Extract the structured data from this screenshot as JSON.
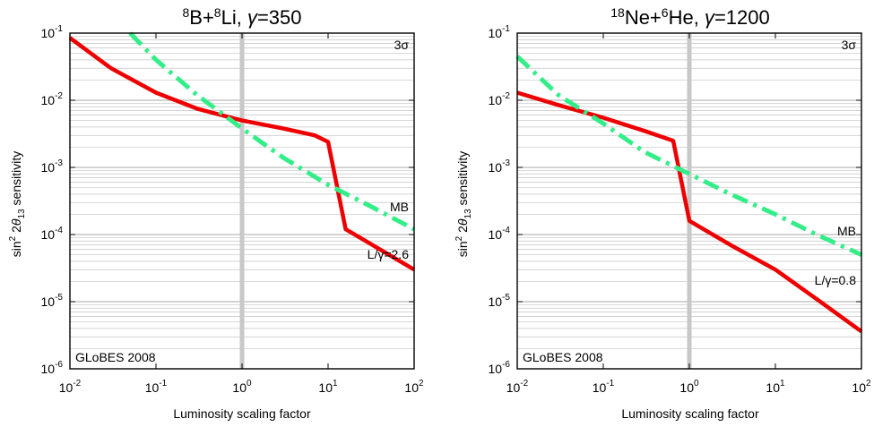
{
  "chart_data": [
    {
      "type": "line",
      "title": {
        "sup1": "8",
        "t1": "B+",
        "sup2": "8",
        "t2": "Li, ",
        "greek": "γ",
        "t3": "=350"
      },
      "xlabel": "Luminosity scaling factor",
      "ylabel": {
        "pre": "sin",
        "sup": "2",
        "mid": " 2",
        "greek": "θ",
        "sub": "13",
        "post": " sensitivity"
      },
      "xscale": "log",
      "yscale": "log",
      "xlim": [
        0.01,
        100
      ],
      "ylim": [
        1e-06,
        0.1
      ],
      "x_ticks": [
        "-2",
        "-1",
        "0",
        "1",
        "2"
      ],
      "y_ticks": [
        "-6",
        "-5",
        "-4",
        "-3",
        "-2",
        "-1"
      ],
      "tick_base": "10",
      "grid": true,
      "vline_x": 1,
      "annotations": {
        "sigma": "3σ",
        "globes": "GLoBES 2008",
        "mb": "MB",
        "lgamma": "L/γ=2.6"
      },
      "series": [
        {
          "name": "L/γ=2.6",
          "style": "solid",
          "color": "#ee0000",
          "points": [
            [
              0.01,
              0.085
            ],
            [
              0.03,
              0.03
            ],
            [
              0.1,
              0.013
            ],
            [
              0.3,
              0.0075
            ],
            [
              1,
              0.005
            ],
            [
              3,
              0.0038
            ],
            [
              7,
              0.003
            ],
            [
              10,
              0.0024
            ],
            [
              16,
              0.00012
            ],
            [
              40,
              6e-05
            ],
            [
              100,
              3e-05
            ]
          ]
        },
        {
          "name": "MB",
          "style": "dashdot",
          "color": "#33ee88",
          "points": [
            [
              0.05,
              0.1
            ],
            [
              0.1,
              0.04
            ],
            [
              0.3,
              0.012
            ],
            [
              1,
              0.0038
            ],
            [
              3,
              0.0014
            ],
            [
              10,
              0.00055
            ],
            [
              30,
              0.00027
            ],
            [
              100,
              0.00012
            ]
          ]
        }
      ]
    },
    {
      "type": "line",
      "title": {
        "sup1": "18",
        "t1": "Ne+",
        "sup2": "6",
        "t2": "He, ",
        "greek": "γ",
        "t3": "=1200"
      },
      "xlabel": "Luminosity scaling factor",
      "ylabel": {
        "pre": "sin",
        "sup": "2",
        "mid": " 2",
        "greek": "θ",
        "sub": "13",
        "post": " sensitivity"
      },
      "xscale": "log",
      "yscale": "log",
      "xlim": [
        0.01,
        100
      ],
      "ylim": [
        1e-06,
        0.1
      ],
      "x_ticks": [
        "-2",
        "-1",
        "0",
        "1",
        "2"
      ],
      "y_ticks": [
        "-6",
        "-5",
        "-4",
        "-3",
        "-2",
        "-1"
      ],
      "tick_base": "10",
      "grid": true,
      "vline_x": 1,
      "annotations": {
        "sigma": "3σ",
        "globes": "GLoBES 2008",
        "mb": "MB",
        "lgamma": "L/γ=0.8"
      },
      "series": [
        {
          "name": "L/γ=0.8",
          "style": "solid",
          "color": "#ee0000",
          "points": [
            [
              0.01,
              0.013
            ],
            [
              0.03,
              0.0085
            ],
            [
              0.1,
              0.0055
            ],
            [
              0.3,
              0.0035
            ],
            [
              0.65,
              0.0025
            ],
            [
              1,
              0.00016
            ],
            [
              3,
              7e-05
            ],
            [
              10,
              3e-05
            ],
            [
              30,
              1.1e-05
            ],
            [
              100,
              3.6e-06
            ]
          ]
        },
        {
          "name": "MB",
          "style": "dashdot",
          "color": "#33ee88",
          "points": [
            [
              0.01,
              0.045
            ],
            [
              0.03,
              0.012
            ],
            [
              0.1,
              0.0045
            ],
            [
              0.3,
              0.0017
            ],
            [
              1,
              0.0008
            ],
            [
              3,
              0.0004
            ],
            [
              10,
              0.0002
            ],
            [
              30,
              0.0001
            ],
            [
              100,
              5e-05
            ]
          ]
        }
      ]
    }
  ]
}
